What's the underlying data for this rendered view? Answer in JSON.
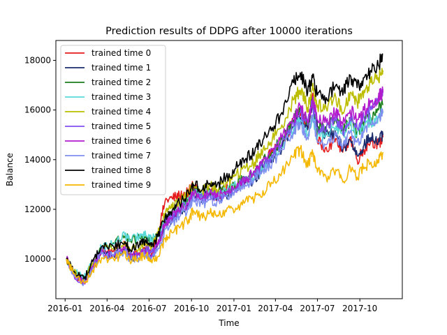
{
  "chart_data": {
    "type": "line",
    "title": "Prediction results of DDPG after 10000 iterations",
    "xlabel": "Time",
    "ylabel": "Balance",
    "x_range": [
      "2015-12-12",
      "2018-01-01"
    ],
    "ylim": [
      8400,
      18800
    ],
    "x_ticks": [
      {
        "date": "2016-01-01",
        "label": "2016-01"
      },
      {
        "date": "2016-04-01",
        "label": "2016-04"
      },
      {
        "date": "2016-07-01",
        "label": "2016-07"
      },
      {
        "date": "2016-10-01",
        "label": "2016-10"
      },
      {
        "date": "2017-01-01",
        "label": "2017-01"
      },
      {
        "date": "2017-04-01",
        "label": "2017-04"
      },
      {
        "date": "2017-07-01",
        "label": "2017-07"
      },
      {
        "date": "2017-10-01",
        "label": "2017-10"
      }
    ],
    "y_ticks": [
      10000,
      12000,
      14000,
      16000,
      18000
    ],
    "grid": false,
    "legend_position": "upper-left",
    "x_dates": [
      "2016-01-04",
      "2016-01-20",
      "2016-02-11",
      "2016-03-01",
      "2016-03-20",
      "2016-04-15",
      "2016-05-10",
      "2016-05-20",
      "2016-06-10",
      "2016-06-24",
      "2016-07-06",
      "2016-07-20",
      "2016-08-05",
      "2016-08-20",
      "2016-09-05",
      "2016-09-25",
      "2016-10-05",
      "2016-10-25",
      "2016-11-10",
      "2016-11-25",
      "2016-12-15",
      "2017-01-05",
      "2017-01-25",
      "2017-02-15",
      "2017-03-05",
      "2017-03-25",
      "2017-04-15",
      "2017-05-10",
      "2017-05-25",
      "2017-06-10",
      "2017-06-20",
      "2017-07-01",
      "2017-07-20",
      "2017-08-10",
      "2017-08-25",
      "2017-09-10",
      "2017-09-25",
      "2017-10-10",
      "2017-10-25",
      "2017-11-10",
      "2017-11-20"
    ],
    "series": [
      {
        "name": "trained time 0",
        "color": "#e41a1c",
        "values": [
          10000,
          9400,
          9050,
          9700,
          10300,
          10350,
          10550,
          10150,
          10250,
          10450,
          10200,
          11000,
          12350,
          12450,
          12550,
          12700,
          13000,
          12500,
          12750,
          12550,
          12800,
          12900,
          13150,
          13300,
          13900,
          14300,
          14700,
          15500,
          15900,
          15300,
          16600,
          14700,
          14500,
          14850,
          14300,
          14900,
          14000,
          14400,
          14800,
          14600,
          14900
        ]
      },
      {
        "name": "trained time 1",
        "color": "#1a2b6d",
        "values": [
          10000,
          9400,
          9100,
          9750,
          10250,
          10150,
          10350,
          10050,
          10150,
          10300,
          10100,
          10650,
          11350,
          11600,
          11900,
          12250,
          12650,
          12450,
          12600,
          12450,
          12600,
          12750,
          13050,
          13200,
          13700,
          14100,
          14500,
          15300,
          15700,
          15200,
          16200,
          15300,
          15000,
          15000,
          14400,
          14800,
          14200,
          14600,
          14900,
          14700,
          15000
        ]
      },
      {
        "name": "trained time 2",
        "color": "#1a7f1a",
        "values": [
          10000,
          9450,
          9150,
          9800,
          10450,
          10650,
          10950,
          10700,
          10850,
          10900,
          10750,
          10900,
          11500,
          11800,
          12050,
          12450,
          12800,
          12600,
          12750,
          12600,
          12800,
          13000,
          13300,
          13500,
          13900,
          14300,
          14800,
          15600,
          16000,
          15400,
          16400,
          15200,
          15300,
          15600,
          15100,
          15600,
          15100,
          15500,
          15700,
          16000,
          16200
        ]
      },
      {
        "name": "trained time 3",
        "color": "#5ad8d8",
        "values": [
          10000,
          9500,
          9200,
          9850,
          10500,
          10600,
          10950,
          10750,
          10900,
          10950,
          10800,
          10950,
          11550,
          11850,
          12000,
          12400,
          12750,
          12550,
          12700,
          12550,
          12750,
          12950,
          13200,
          13350,
          13650,
          14000,
          14500,
          15200,
          15600,
          15000,
          15800,
          14900,
          15100,
          15350,
          15000,
          15450,
          15000,
          15350,
          15550,
          15750,
          15900
        ]
      },
      {
        "name": "trained time 4",
        "color": "#bdbd00",
        "values": [
          10000,
          9450,
          9150,
          9800,
          10400,
          10400,
          10650,
          10300,
          10450,
          10600,
          10450,
          11000,
          11850,
          12050,
          12300,
          12650,
          13000,
          12750,
          12950,
          12800,
          13100,
          13350,
          13650,
          13900,
          14400,
          14800,
          15400,
          16400,
          16800,
          16100,
          16900,
          16200,
          16100,
          16500,
          15900,
          16700,
          16300,
          16800,
          17100,
          17300,
          17600
        ]
      },
      {
        "name": "trained time 5",
        "color": "#7f4fef",
        "values": [
          10000,
          9350,
          9050,
          9700,
          10300,
          10150,
          10400,
          10100,
          10200,
          10400,
          10250,
          10650,
          11500,
          11700,
          11950,
          12250,
          12600,
          12400,
          12550,
          12450,
          12650,
          12850,
          13150,
          13350,
          13800,
          14200,
          14700,
          15500,
          15900,
          15400,
          16300,
          15300,
          15200,
          15600,
          15100,
          15700,
          15300,
          15700,
          16000,
          16300,
          16850
        ]
      },
      {
        "name": "trained time 6",
        "color": "#b21bcc",
        "values": [
          10000,
          9350,
          9050,
          9650,
          10250,
          10100,
          10350,
          10050,
          10150,
          10300,
          10150,
          10550,
          11450,
          11700,
          11950,
          12250,
          12650,
          12450,
          12650,
          12500,
          12700,
          12900,
          13250,
          13500,
          13950,
          14400,
          14900,
          15700,
          16100,
          15500,
          16400,
          15600,
          15500,
          15900,
          15400,
          16000,
          15600,
          16000,
          16300,
          16500,
          16700
        ]
      },
      {
        "name": "trained time 7",
        "color": "#7f8fef",
        "values": [
          10000,
          9350,
          9050,
          9650,
          10200,
          10100,
          10300,
          9950,
          10050,
          10200,
          10050,
          10400,
          11200,
          11450,
          11700,
          12000,
          12350,
          12200,
          12400,
          12300,
          12500,
          12700,
          13000,
          13200,
          13600,
          13900,
          14400,
          15100,
          15500,
          14900,
          15800,
          14700,
          14600,
          15000,
          14500,
          15100,
          14700,
          15100,
          15400,
          15700,
          15900
        ]
      },
      {
        "name": "trained time 8",
        "color": "#000000",
        "values": [
          10000,
          9500,
          9200,
          9900,
          10500,
          10500,
          10700,
          10400,
          10550,
          10700,
          10500,
          10900,
          11700,
          11950,
          12250,
          12650,
          13000,
          12800,
          13050,
          12950,
          13300,
          13650,
          14000,
          14300,
          14800,
          15300,
          15900,
          17100,
          17500,
          16700,
          17300,
          16600,
          16500,
          17000,
          16600,
          17400,
          16900,
          17300,
          17600,
          17800,
          18250
        ]
      },
      {
        "name": "trained time 9",
        "color": "#f5b800",
        "values": [
          10000,
          9400,
          9050,
          9550,
          10050,
          10000,
          10200,
          9950,
          10050,
          10150,
          9950,
          10100,
          10850,
          11050,
          11250,
          11600,
          11950,
          11650,
          11850,
          11700,
          11900,
          12050,
          12300,
          12450,
          12750,
          13050,
          13500,
          14100,
          14450,
          13700,
          14400,
          13500,
          13300,
          13600,
          13100,
          13700,
          13300,
          13700,
          13900,
          14000,
          14300
        ]
      }
    ]
  }
}
